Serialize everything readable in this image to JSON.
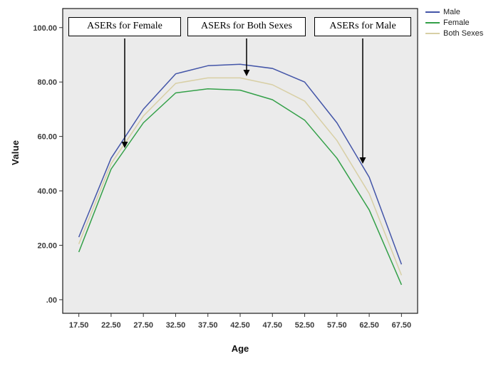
{
  "chart_data": {
    "type": "line",
    "title": "",
    "xlabel": "Age",
    "ylabel": "Value",
    "grid": false,
    "legend_position": "top-right",
    "plot_background": "#ebebeb",
    "x": [
      17.5,
      22.5,
      27.5,
      32.5,
      37.5,
      42.5,
      47.5,
      52.5,
      57.5,
      62.5,
      67.5
    ],
    "xtick_labels": [
      "17.50",
      "22.50",
      "27.50",
      "32.50",
      "37.50",
      "42.50",
      "47.50",
      "52.50",
      "57.50",
      "62.50",
      "67.50"
    ],
    "ytick_values": [
      0,
      20,
      40,
      60,
      80,
      100
    ],
    "ytick_labels": [
      ".00",
      "20.00",
      "40.00",
      "60.00",
      "80.00",
      "100.00"
    ],
    "ylim": [
      0,
      100
    ],
    "series": [
      {
        "name": "Male",
        "color": "#4355a8",
        "values": [
          23.0,
          52.0,
          70.0,
          83.0,
          86.0,
          86.5,
          85.0,
          80.0,
          65.0,
          45.0,
          13.0
        ]
      },
      {
        "name": "Female",
        "color": "#33a048",
        "values": [
          17.5,
          48.0,
          65.0,
          76.0,
          77.5,
          77.0,
          73.5,
          66.0,
          52.0,
          33.0,
          5.5
        ]
      },
      {
        "name": "Both Sexes",
        "color": "#d8cfa5",
        "values": [
          20.5,
          50.0,
          67.5,
          79.5,
          81.5,
          81.5,
          79.0,
          73.0,
          58.5,
          39.0,
          9.0
        ]
      }
    ]
  },
  "annotations": [
    {
      "label": "ASERs for Female"
    },
    {
      "label": "ASERs for Both Sexes"
    },
    {
      "label": "ASERs for Male"
    }
  ]
}
